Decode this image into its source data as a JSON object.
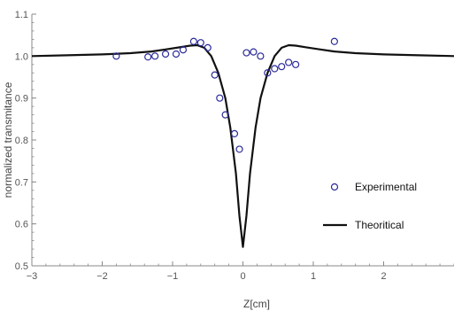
{
  "chart_data": {
    "type": "scatter",
    "xlabel": "Z[cm]",
    "ylabel": "normalized transmitance",
    "xlim": [
      -3,
      3
    ],
    "ylim": [
      0.5,
      1.1
    ],
    "x_ticks": [
      -3,
      -2,
      -1,
      0,
      1,
      2
    ],
    "y_ticks": [
      0.5,
      0.6,
      0.7,
      0.8,
      0.9,
      1.0,
      1.1
    ],
    "x_tick_labels": [
      "−3",
      "−2",
      "−1",
      "0",
      "1",
      "2"
    ],
    "y_tick_labels": [
      "0.5",
      "0.6",
      "0.7",
      "0.8",
      "0.9",
      "1.0",
      "1.1"
    ],
    "grid": false,
    "legend_position": "right",
    "colors": {
      "experimental": "#2b2b9a",
      "theoretical": "#111111",
      "axis": "#888888"
    },
    "series": [
      {
        "name": "Experimental",
        "kind": "scatter",
        "marker": "open-circle",
        "points": [
          [
            -1.8,
            1.0
          ],
          [
            -1.35,
            0.998
          ],
          [
            -1.25,
            1.0
          ],
          [
            -1.1,
            1.005
          ],
          [
            -0.95,
            1.005
          ],
          [
            -0.85,
            1.015
          ],
          [
            -0.7,
            1.035
          ],
          [
            -0.6,
            1.032
          ],
          [
            -0.5,
            1.02
          ],
          [
            -0.4,
            0.955
          ],
          [
            -0.33,
            0.9
          ],
          [
            -0.25,
            0.86
          ],
          [
            -0.12,
            0.815
          ],
          [
            -0.05,
            0.778
          ],
          [
            0.05,
            1.008
          ],
          [
            0.15,
            1.01
          ],
          [
            0.25,
            1.0
          ],
          [
            0.35,
            0.96
          ],
          [
            0.45,
            0.97
          ],
          [
            0.55,
            0.975
          ],
          [
            0.65,
            0.985
          ],
          [
            0.75,
            0.98
          ],
          [
            1.3,
            1.035
          ]
        ]
      },
      {
        "name": "Theoritical",
        "kind": "line",
        "points": [
          [
            -3,
            1.0
          ],
          [
            -2.5,
            1.002
          ],
          [
            -2.0,
            1.004
          ],
          [
            -1.6,
            1.007
          ],
          [
            -1.3,
            1.011
          ],
          [
            -1.1,
            1.016
          ],
          [
            -0.9,
            1.021
          ],
          [
            -0.75,
            1.025
          ],
          [
            -0.65,
            1.026
          ],
          [
            -0.55,
            1.02
          ],
          [
            -0.45,
            1.0
          ],
          [
            -0.35,
            0.96
          ],
          [
            -0.25,
            0.9
          ],
          [
            -0.18,
            0.83
          ],
          [
            -0.1,
            0.72
          ],
          [
            -0.05,
            0.62
          ],
          [
            0.0,
            0.545
          ],
          [
            0.05,
            0.62
          ],
          [
            0.1,
            0.72
          ],
          [
            0.18,
            0.83
          ],
          [
            0.25,
            0.9
          ],
          [
            0.35,
            0.96
          ],
          [
            0.45,
            1.0
          ],
          [
            0.55,
            1.02
          ],
          [
            0.65,
            1.026
          ],
          [
            0.75,
            1.025
          ],
          [
            0.9,
            1.021
          ],
          [
            1.1,
            1.016
          ],
          [
            1.3,
            1.011
          ],
          [
            1.6,
            1.007
          ],
          [
            2.0,
            1.004
          ],
          [
            2.5,
            1.002
          ],
          [
            3.0,
            1.0
          ]
        ]
      }
    ]
  }
}
